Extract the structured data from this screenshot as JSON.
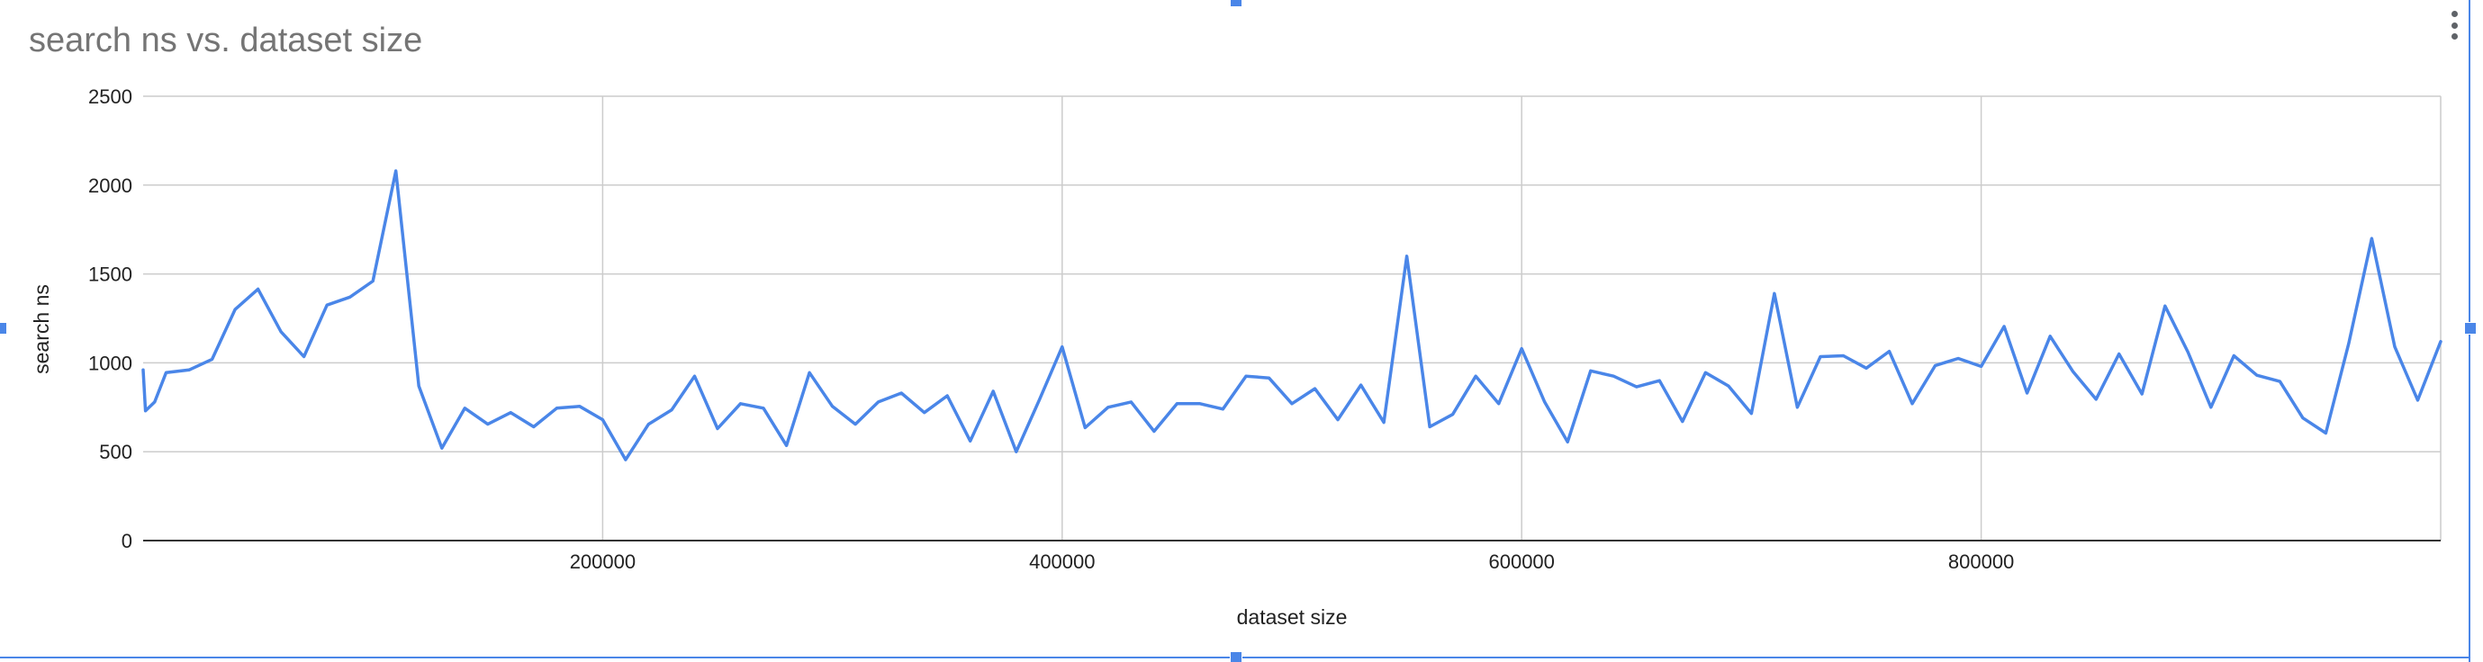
{
  "chart_data": {
    "type": "line",
    "title": "search ns vs. dataset size",
    "xlabel": "dataset size",
    "ylabel": "search ns",
    "xlim": [
      0,
      1000000
    ],
    "ylim": [
      0,
      2500
    ],
    "x_ticks": [
      200000,
      400000,
      600000,
      800000
    ],
    "x_tick_labels": [
      "200000",
      "400000",
      "600000",
      "800000"
    ],
    "y_ticks": [
      0,
      500,
      1000,
      1500,
      2000,
      2500
    ],
    "y_tick_labels": [
      "0",
      "500",
      "1000",
      "1500",
      "2000",
      "2500"
    ],
    "grid": true,
    "legend": "none",
    "line_color": "#4a86e8",
    "series": [
      {
        "x": [
          0,
          1000,
          5000,
          10000,
          20000,
          30000,
          40000,
          50000,
          60000,
          70000,
          80000,
          90000,
          100000,
          110000,
          120000,
          130000,
          140000,
          150000,
          160000,
          170000,
          180000,
          190000,
          200000,
          210000,
          220000,
          230000,
          240000,
          250000,
          260000,
          270000,
          280000,
          290000,
          300000,
          310000,
          320000,
          330000,
          340000,
          350000,
          360000,
          370000,
          380000,
          390000,
          400000,
          410000,
          420000,
          430000,
          440000,
          450000,
          460000,
          470000,
          480000,
          490000,
          500000,
          510000,
          520000,
          530000,
          540000,
          550000,
          560000,
          570000,
          580000,
          590000,
          600000,
          610000,
          620000,
          630000,
          640000,
          650000,
          660000,
          670000,
          680000,
          690000,
          700000,
          710000,
          720000,
          730000,
          740000,
          750000,
          760000,
          770000,
          780000,
          790000,
          800000,
          810000,
          820000,
          830000,
          840000,
          850000,
          860000,
          870000,
          880000,
          890000,
          900000,
          910000,
          920000,
          930000,
          940000,
          950000,
          960000,
          970000,
          980000,
          990000,
          1000000
        ],
        "values": [
          960,
          730,
          780,
          945,
          960,
          1020,
          1300,
          1415,
          1175,
          1035,
          1325,
          1370,
          1460,
          2080,
          870,
          520,
          745,
          655,
          720,
          640,
          745,
          755,
          680,
          455,
          655,
          735,
          925,
          630,
          770,
          745,
          535,
          945,
          755,
          655,
          780,
          830,
          720,
          815,
          560,
          840,
          500,
          790,
          1090,
          635,
          750,
          780,
          615,
          770,
          770,
          740,
          925,
          915,
          770,
          855,
          680,
          875,
          665,
          1600,
          640,
          710,
          925,
          770,
          1080,
          780,
          555,
          955,
          925,
          865,
          900,
          670,
          945,
          870,
          715,
          1390,
          750,
          1035,
          1040,
          970,
          1065,
          770,
          985,
          1025,
          980,
          1205,
          830,
          1150,
          950,
          795,
          1050,
          825,
          1320,
          1060,
          750,
          1040,
          930,
          895,
          690,
          605,
          1110,
          1700,
          1090,
          790,
          1120
        ]
      }
    ]
  }
}
